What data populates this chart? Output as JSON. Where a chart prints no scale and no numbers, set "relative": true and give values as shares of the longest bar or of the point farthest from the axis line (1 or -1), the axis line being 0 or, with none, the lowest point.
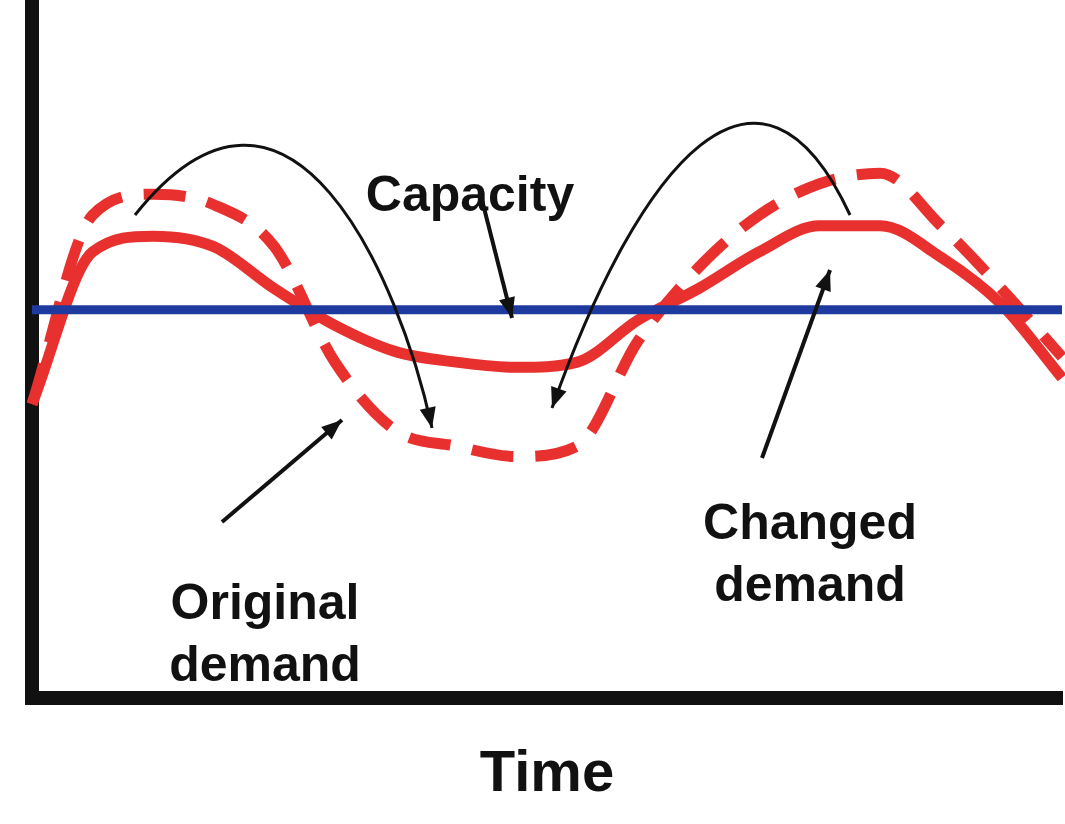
{
  "chart_data": {
    "type": "line",
    "relative": true,
    "xlabel": "Time",
    "categories": [
      null,
      null,
      null,
      null,
      null,
      null,
      null,
      null,
      null,
      null,
      null,
      null,
      null,
      null,
      null,
      null,
      null,
      null
    ],
    "series": [
      {
        "name": "Capacity",
        "color": "#1f3a9e",
        "values": [
          0.74,
          0.74,
          0.74,
          0.74,
          0.74,
          0.74,
          0.74,
          0.74,
          0.74,
          0.74,
          0.74,
          0.74,
          0.74,
          0.74,
          0.74,
          0.74,
          0.74,
          0.74
        ]
      },
      {
        "name": "Original demand",
        "color": "#e8302e",
        "line_style": "dashed",
        "values": [
          0.56,
          0.92,
          0.96,
          0.94,
          0.86,
          0.64,
          0.51,
          0.48,
          0.46,
          0.48,
          0.68,
          0.82,
          0.92,
          0.98,
          1.0,
          0.9,
          0.78,
          0.65
        ]
      },
      {
        "name": "Changed demand",
        "color": "#e8302e",
        "values": [
          0.56,
          0.85,
          0.88,
          0.86,
          0.78,
          0.71,
          0.66,
          0.64,
          0.63,
          0.64,
          0.72,
          0.78,
          0.85,
          0.9,
          0.9,
          0.84,
          0.75,
          0.61
        ]
      }
    ],
    "legend": false,
    "grid": false,
    "marker": "none"
  }
}
